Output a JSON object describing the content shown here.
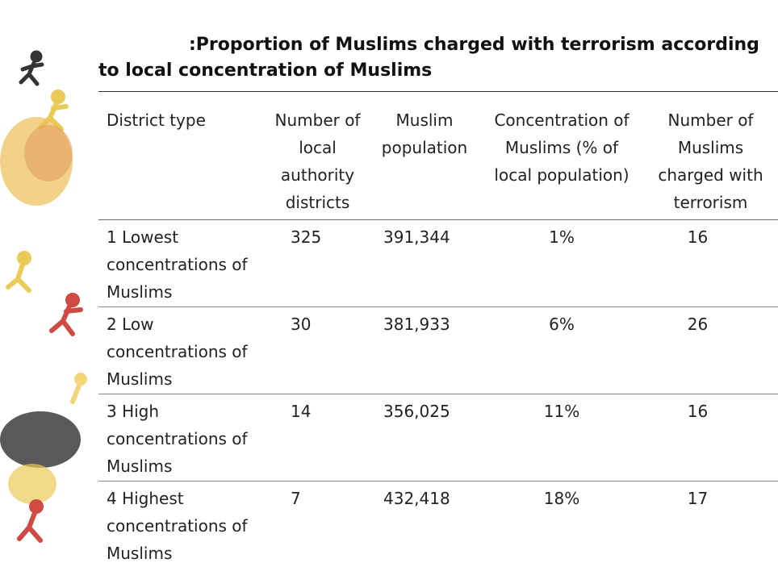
{
  "title": ":Proportion of Muslims charged with terrorism according to local concentration of Muslims",
  "table": {
    "header": [
      "District type",
      "Number of local authority districts",
      "Muslim population",
      "Concentration of Muslims (% of local population)",
      "Number of Muslims charged with terrorism"
    ],
    "rows": [
      [
        "1 Lowest concentrations of Muslims",
        "325",
        "391,344",
        "1%",
        "16"
      ],
      [
        "2 Low concentrations of Muslims",
        "30",
        "381,933",
        "6%",
        "26"
      ],
      [
        "3 High concentrations of Muslims",
        "14",
        "356,025",
        "11%",
        "16"
      ],
      [
        "4 Highest concentrations of Muslims",
        "7",
        "432,418",
        "18%",
        "17"
      ]
    ]
  }
}
